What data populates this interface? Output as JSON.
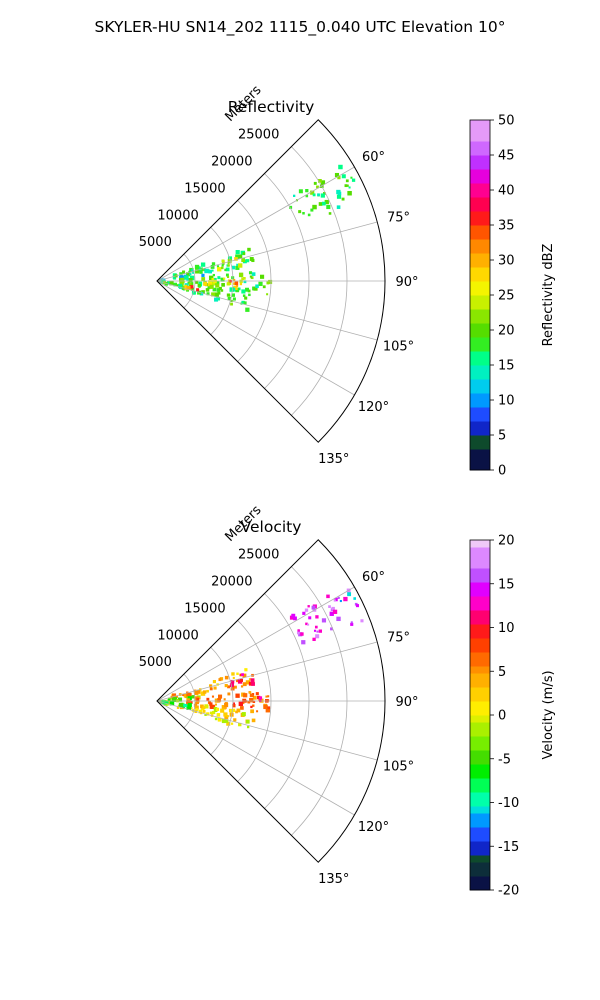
{
  "figure": {
    "suptitle": "SKYLER-HU  SN14_202  1115_0.040 UTC Elevation 10°"
  },
  "chart_data": [
    {
      "type": "heatmap",
      "title": "Reflectivity",
      "range_axis_label": "Meters",
      "range_ticks": [
        "5000",
        "10000",
        "15000",
        "20000",
        "25000"
      ],
      "range_max": 30000,
      "azimuth_range": [
        45,
        135
      ],
      "azimuth_ticks": [
        "60°",
        "75°",
        "90°",
        "105°",
        "120°",
        "135°"
      ],
      "colorbar": {
        "label": "Reflectivity dBZ",
        "min": 0,
        "max": 50,
        "ticks": [
          "0",
          "5",
          "10",
          "15",
          "20",
          "25",
          "30",
          "35",
          "40",
          "45",
          "50"
        ]
      },
      "echo_regions": [
        {
          "az": [
            57,
            69
          ],
          "r": [
            20000,
            29500
          ],
          "dbz": 18
        },
        {
          "az": [
            70,
            81
          ],
          "r": [
            2000,
            13000
          ],
          "dbz": 17
        },
        {
          "az": [
            73,
            80
          ],
          "r": [
            8000,
            12000
          ],
          "dbz": 25
        },
        {
          "az": [
            80,
            84
          ],
          "r": [
            0,
            7000
          ],
          "dbz": 12
        },
        {
          "az": [
            84,
            97
          ],
          "r": [
            3000,
            15000
          ],
          "dbz": 18
        },
        {
          "az": [
            88,
            96
          ],
          "r": [
            6000,
            12000
          ],
          "dbz": 27
        },
        {
          "az": [
            90,
            93
          ],
          "r": [
            9000,
            11000
          ],
          "dbz": 33
        },
        {
          "az": [
            96,
            108
          ],
          "r": [
            0,
            13000
          ],
          "dbz": 18
        },
        {
          "az": [
            99,
            104
          ],
          "r": [
            3000,
            6000
          ],
          "dbz": 32
        }
      ]
    },
    {
      "type": "heatmap",
      "title": "Velocity",
      "range_axis_label": "Meters",
      "range_ticks": [
        "5000",
        "10000",
        "15000",
        "20000",
        "25000"
      ],
      "range_max": 30000,
      "azimuth_range": [
        45,
        135
      ],
      "azimuth_ticks": [
        "60°",
        "75°",
        "90°",
        "105°",
        "120°",
        "135°"
      ],
      "colorbar": {
        "label": "Velocity (m/s)",
        "min": -20,
        "max": 20,
        "ticks": [
          "-20",
          "-15",
          "-10",
          "-5",
          "0",
          "5",
          "10",
          "15",
          "20"
        ]
      },
      "echo_regions": [
        {
          "az": [
            57,
            69
          ],
          "r": [
            20000,
            29500
          ],
          "vel": 15
        },
        {
          "az": [
            60,
            63
          ],
          "r": [
            27000,
            29500
          ],
          "vel": -12
        },
        {
          "az": [
            70,
            81
          ],
          "r": [
            2000,
            13000
          ],
          "vel": 4
        },
        {
          "az": [
            72,
            80
          ],
          "r": [
            10000,
            13500
          ],
          "vel": 10
        },
        {
          "az": [
            82,
            90
          ],
          "r": [
            1000,
            6000
          ],
          "vel": -4
        },
        {
          "az": [
            84,
            97
          ],
          "r": [
            4000,
            15000
          ],
          "vel": 6
        },
        {
          "az": [
            86,
            94
          ],
          "r": [
            10000,
            15000
          ],
          "vel": 10
        },
        {
          "az": [
            96,
            108
          ],
          "r": [
            0,
            13000
          ],
          "vel": 1
        },
        {
          "az": [
            96,
            104
          ],
          "r": [
            0,
            5000
          ],
          "vel": -6
        }
      ]
    }
  ]
}
